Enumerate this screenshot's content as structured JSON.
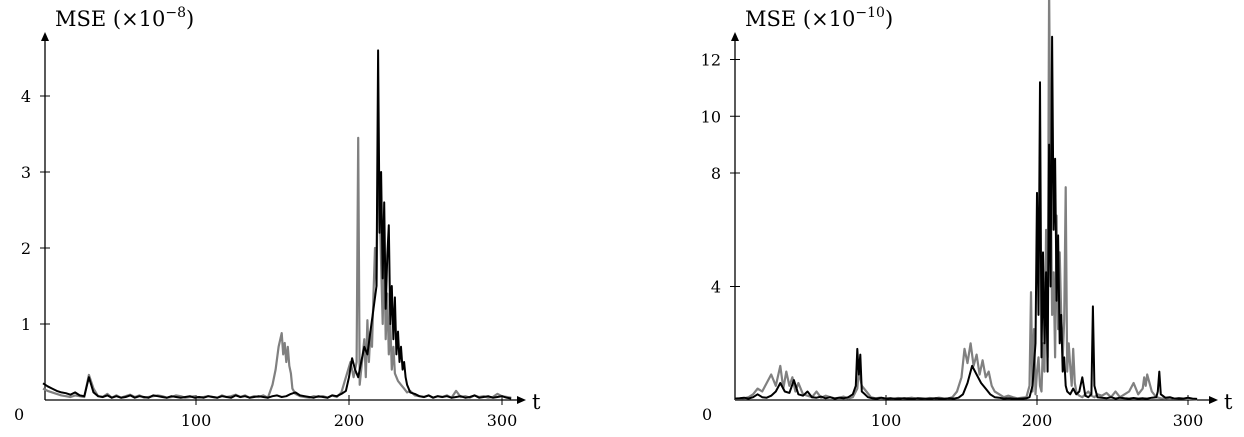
{
  "chart_data": [
    {
      "type": "line",
      "title": "",
      "xlabel": "t",
      "ylabel": "MSE (×10",
      "ylabel_exponent": "−8",
      "ylabel_close": ")",
      "xlim": [
        0,
        315
      ],
      "ylim": [
        0,
        4.6
      ],
      "x_ticks": [
        100,
        200,
        300
      ],
      "y_ticks": [
        1,
        2,
        3,
        4
      ],
      "origin_label": "0",
      "grid": false,
      "legend": "none",
      "series": [
        {
          "color": "#000000",
          "x": [
            0,
            3,
            6,
            9,
            12,
            15,
            18,
            21,
            24,
            27,
            30,
            33,
            36,
            39,
            42,
            45,
            48,
            51,
            54,
            57,
            60,
            63,
            66,
            69,
            72,
            75,
            78,
            81,
            84,
            87,
            90,
            93,
            96,
            99,
            102,
            105,
            108,
            111,
            114,
            117,
            120,
            123,
            126,
            129,
            132,
            135,
            138,
            141,
            144,
            147,
            150,
            153,
            156,
            159,
            162,
            165,
            168,
            171,
            174,
            177,
            180,
            183,
            186,
            189,
            192,
            195,
            198,
            200,
            202,
            204,
            206,
            208,
            210,
            212,
            214,
            216,
            218,
            219,
            220,
            221,
            222,
            223,
            224,
            225,
            226,
            227,
            228,
            229,
            230,
            231,
            232,
            233,
            234,
            235,
            236,
            237,
            238,
            239,
            240,
            243,
            246,
            249,
            252,
            255,
            258,
            261,
            264,
            267,
            270,
            273,
            276,
            279,
            282,
            285,
            288,
            291,
            294,
            297,
            300,
            303,
            306
          ],
          "y": [
            0.22,
            0.18,
            0.15,
            0.12,
            0.1,
            0.09,
            0.07,
            0.1,
            0.06,
            0.05,
            0.3,
            0.1,
            0.05,
            0.04,
            0.06,
            0.03,
            0.05,
            0.03,
            0.04,
            0.06,
            0.03,
            0.05,
            0.04,
            0.03,
            0.06,
            0.05,
            0.04,
            0.03,
            0.05,
            0.04,
            0.03,
            0.04,
            0.05,
            0.03,
            0.04,
            0.03,
            0.05,
            0.04,
            0.03,
            0.05,
            0.04,
            0.03,
            0.06,
            0.04,
            0.05,
            0.03,
            0.04,
            0.05,
            0.04,
            0.03,
            0.05,
            0.06,
            0.04,
            0.05,
            0.08,
            0.1,
            0.06,
            0.05,
            0.04,
            0.03,
            0.05,
            0.04,
            0.03,
            0.06,
            0.05,
            0.08,
            0.12,
            0.3,
            0.55,
            0.4,
            0.3,
            0.5,
            0.7,
            0.6,
            0.9,
            1.2,
            1.5,
            4.6,
            2.2,
            3.0,
            1.6,
            2.6,
            1.2,
            1.9,
            2.3,
            1.0,
            1.5,
            0.8,
            1.35,
            0.6,
            0.9,
            0.5,
            0.7,
            0.4,
            0.5,
            0.3,
            0.2,
            0.15,
            0.1,
            0.08,
            0.05,
            0.04,
            0.06,
            0.03,
            0.05,
            0.04,
            0.05,
            0.03,
            0.04,
            0.05,
            0.03,
            0.04,
            0.06,
            0.03,
            0.04,
            0.05,
            0.03,
            0.04,
            0.05,
            0.03,
            0.02
          ]
        },
        {
          "color": "#808080",
          "x": [
            0,
            3,
            6,
            9,
            12,
            15,
            18,
            21,
            24,
            27,
            30,
            33,
            36,
            39,
            42,
            45,
            48,
            51,
            54,
            57,
            60,
            63,
            66,
            69,
            72,
            75,
            78,
            81,
            84,
            87,
            90,
            93,
            96,
            99,
            102,
            105,
            108,
            111,
            114,
            117,
            120,
            123,
            126,
            129,
            132,
            135,
            138,
            141,
            144,
            147,
            150,
            152,
            154,
            156,
            157,
            158,
            159,
            160,
            161,
            162,
            163,
            165,
            168,
            171,
            174,
            177,
            180,
            183,
            186,
            189,
            192,
            195,
            198,
            201,
            203,
            205,
            206,
            207,
            208,
            209,
            210,
            211,
            212,
            213,
            214,
            215,
            216,
            217,
            218,
            219,
            220,
            221,
            222,
            223,
            224,
            225,
            226,
            227,
            228,
            229,
            230,
            232,
            234,
            236,
            238,
            240,
            243,
            246,
            249,
            252,
            255,
            258,
            261,
            264,
            267,
            270,
            273,
            276,
            279,
            282,
            285,
            288,
            291,
            294,
            297,
            300,
            303,
            306
          ],
          "y": [
            0.15,
            0.12,
            0.1,
            0.08,
            0.06,
            0.05,
            0.04,
            0.06,
            0.05,
            0.04,
            0.33,
            0.15,
            0.05,
            0.04,
            0.08,
            0.03,
            0.06,
            0.03,
            0.05,
            0.07,
            0.04,
            0.06,
            0.03,
            0.04,
            0.05,
            0.06,
            0.05,
            0.03,
            0.04,
            0.06,
            0.05,
            0.03,
            0.04,
            0.05,
            0.03,
            0.04,
            0.05,
            0.04,
            0.03,
            0.06,
            0.04,
            0.05,
            0.07,
            0.04,
            0.06,
            0.03,
            0.05,
            0.04,
            0.06,
            0.03,
            0.2,
            0.4,
            0.7,
            0.88,
            0.6,
            0.75,
            0.5,
            0.7,
            0.45,
            0.35,
            0.15,
            0.08,
            0.05,
            0.04,
            0.03,
            0.05,
            0.04,
            0.05,
            0.03,
            0.06,
            0.04,
            0.1,
            0.3,
            0.5,
            0.3,
            0.5,
            3.45,
            0.2,
            0.4,
            0.6,
            0.8,
            0.3,
            1.05,
            0.5,
            0.9,
            0.7,
            1.4,
            2.0,
            1.5,
            3.4,
            2.6,
            1.8,
            1.0,
            2.1,
            0.8,
            1.4,
            0.6,
            1.0,
            0.4,
            0.7,
            0.35,
            0.25,
            0.2,
            0.15,
            0.1,
            0.12,
            0.06,
            0.05,
            0.04,
            0.06,
            0.03,
            0.05,
            0.04,
            0.06,
            0.03,
            0.12,
            0.04,
            0.05,
            0.03,
            0.06,
            0.04,
            0.05,
            0.03,
            0.04,
            0.08,
            0.05,
            0.04,
            0.03
          ]
        }
      ]
    },
    {
      "type": "line",
      "title": "",
      "xlabel": "t",
      "ylabel": "MSE (×10",
      "ylabel_exponent": "−10",
      "ylabel_close": ")",
      "xlim": [
        0,
        315
      ],
      "ylim": [
        0,
        14
      ],
      "x_ticks": [
        100,
        200,
        300
      ],
      "y_ticks": [
        4,
        8,
        10,
        12
      ],
      "origin_label": "0",
      "grid": false,
      "legend": "none",
      "series": [
        {
          "color": "#000000",
          "x": [
            0,
            3,
            6,
            9,
            12,
            15,
            18,
            21,
            24,
            27,
            30,
            33,
            36,
            39,
            42,
            45,
            48,
            51,
            54,
            57,
            60,
            63,
            66,
            69,
            72,
            75,
            78,
            80,
            81,
            82,
            83,
            84,
            86,
            88,
            91,
            94,
            97,
            100,
            103,
            106,
            109,
            112,
            115,
            118,
            121,
            124,
            127,
            130,
            133,
            136,
            139,
            142,
            145,
            148,
            151,
            154,
            157,
            160,
            163,
            166,
            169,
            172,
            175,
            178,
            181,
            184,
            187,
            190,
            193,
            195,
            197,
            199,
            200,
            201,
            202,
            203,
            204,
            205,
            206,
            207,
            208,
            209,
            210,
            211,
            212,
            213,
            214,
            215,
            216,
            217,
            218,
            219,
            220,
            222,
            224,
            226,
            228,
            230,
            232,
            234,
            236,
            237,
            238,
            240,
            243,
            246,
            249,
            252,
            255,
            258,
            261,
            264,
            267,
            270,
            273,
            276,
            279,
            280,
            281,
            282,
            285,
            288,
            291,
            294,
            297,
            300,
            303,
            306
          ],
          "y": [
            0.05,
            0.06,
            0.08,
            0.05,
            0.1,
            0.2,
            0.1,
            0.08,
            0.15,
            0.3,
            0.6,
            0.3,
            0.25,
            0.7,
            0.2,
            0.15,
            0.3,
            0.1,
            0.08,
            0.12,
            0.06,
            0.1,
            0.05,
            0.08,
            0.06,
            0.1,
            0.2,
            0.5,
            1.8,
            0.9,
            1.6,
            0.3,
            0.2,
            0.1,
            0.06,
            0.05,
            0.08,
            0.05,
            0.06,
            0.04,
            0.05,
            0.06,
            0.05,
            0.04,
            0.06,
            0.05,
            0.04,
            0.05,
            0.06,
            0.05,
            0.04,
            0.06,
            0.05,
            0.08,
            0.2,
            0.6,
            1.2,
            0.9,
            0.6,
            0.4,
            0.2,
            0.1,
            0.08,
            0.05,
            0.06,
            0.05,
            0.04,
            0.05,
            0.06,
            0.1,
            0.5,
            2.0,
            7.3,
            3.0,
            11.2,
            1.5,
            5.2,
            2.0,
            4.5,
            1.0,
            9.0,
            4.0,
            12.8,
            6.0,
            8.5,
            3.5,
            5.8,
            2.0,
            3.0,
            1.0,
            1.5,
            0.5,
            0.3,
            0.2,
            0.4,
            0.2,
            0.3,
            0.8,
            0.15,
            0.1,
            0.2,
            3.3,
            0.5,
            0.1,
            0.08,
            0.06,
            0.1,
            0.05,
            0.08,
            0.06,
            0.05,
            0.07,
            0.05,
            0.06,
            0.05,
            0.08,
            0.1,
            0.3,
            1.0,
            0.2,
            0.08,
            0.1,
            0.05,
            0.06,
            0.05,
            0.08,
            0.05,
            0.04
          ]
        },
        {
          "color": "#808080",
          "x": [
            0,
            3,
            6,
            9,
            12,
            15,
            18,
            21,
            24,
            27,
            30,
            32,
            34,
            36,
            38,
            40,
            42,
            45,
            48,
            51,
            54,
            57,
            60,
            63,
            66,
            69,
            72,
            75,
            78,
            81,
            82,
            84,
            87,
            90,
            93,
            96,
            99,
            102,
            105,
            108,
            111,
            114,
            117,
            120,
            123,
            126,
            129,
            132,
            135,
            138,
            141,
            144,
            147,
            150,
            152,
            154,
            156,
            158,
            160,
            162,
            164,
            166,
            168,
            170,
            172,
            175,
            178,
            181,
            184,
            187,
            190,
            193,
            195,
            196,
            197,
            198,
            199,
            200,
            201,
            202,
            203,
            204,
            205,
            206,
            207,
            208,
            209,
            210,
            211,
            212,
            213,
            214,
            215,
            216,
            217,
            218,
            219,
            220,
            221,
            222,
            223,
            224,
            225,
            226,
            227,
            228,
            230,
            232,
            234,
            236,
            238,
            240,
            243,
            246,
            249,
            252,
            255,
            258,
            261,
            264,
            267,
            270,
            271,
            272,
            273,
            276,
            279,
            282,
            285,
            288,
            291,
            294,
            297,
            300,
            303,
            306
          ],
          "y": [
            0.04,
            0.05,
            0.06,
            0.1,
            0.2,
            0.4,
            0.3,
            0.6,
            0.9,
            0.5,
            1.2,
            0.4,
            1.0,
            0.5,
            0.8,
            0.3,
            0.6,
            0.2,
            0.15,
            0.1,
            0.3,
            0.08,
            0.15,
            0.1,
            0.06,
            0.08,
            0.12,
            0.05,
            0.1,
            0.4,
            1.0,
            0.5,
            0.3,
            0.1,
            0.06,
            0.08,
            0.05,
            0.06,
            0.05,
            0.07,
            0.05,
            0.06,
            0.08,
            0.05,
            0.06,
            0.05,
            0.07,
            0.05,
            0.08,
            0.06,
            0.05,
            0.1,
            0.3,
            0.8,
            1.8,
            1.3,
            2.0,
            1.2,
            1.6,
            0.9,
            1.4,
            0.8,
            1.0,
            0.5,
            0.3,
            0.2,
            0.1,
            0.15,
            0.1,
            0.06,
            0.08,
            0.1,
            0.5,
            3.8,
            0.3,
            2.5,
            0.2,
            1.0,
            1.5,
            0.5,
            0.3,
            2.0,
            1.0,
            6.0,
            1.5,
            14.5,
            8.0,
            3.0,
            4.5,
            1.5,
            6.5,
            2.5,
            5.2,
            3.0,
            1.5,
            2.8,
            7.5,
            1.0,
            2.0,
            1.2,
            0.5,
            1.8,
            0.6,
            0.3,
            0.2,
            0.15,
            0.1,
            0.2,
            0.3,
            0.15,
            0.1,
            0.2,
            0.15,
            0.25,
            0.1,
            0.3,
            0.1,
            0.2,
            0.3,
            0.6,
            0.2,
            0.4,
            0.8,
            0.5,
            0.9,
            0.3,
            0.1,
            0.06,
            0.05,
            0.08,
            0.04,
            0.06,
            0.05,
            0.04,
            0.03,
            0.02
          ]
        }
      ]
    }
  ]
}
